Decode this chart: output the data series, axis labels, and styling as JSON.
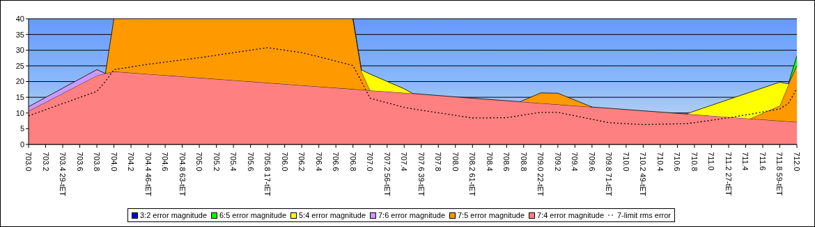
{
  "chart_data": {
    "type": "area",
    "stacked": true,
    "x": [
      703.0,
      703.8,
      703.9,
      704.0,
      704.4,
      705.0,
      705.4,
      705.8,
      706.2,
      706.4,
      706.8,
      706.9,
      707.0,
      707.4,
      707.5,
      708.2,
      708.6,
      708.76,
      709.0,
      709.2,
      709.6,
      709.8,
      710.2,
      710.7,
      710.8,
      711.2,
      711.45,
      711.8,
      711.9,
      712.0
    ],
    "series": [
      {
        "name": "7:4 error magnitude",
        "color": "#ff8080",
        "values": [
          10.6,
          21.9,
          22.6,
          23.2,
          22.4,
          21.2,
          20.4,
          19.6,
          18.8,
          18.4,
          17.6,
          17.4,
          17.2,
          16.4,
          16.2,
          14.7,
          13.9,
          13.6,
          13.1,
          12.7,
          11.9,
          11.5,
          10.7,
          9.7,
          9.5,
          8.7,
          8.2,
          7.5,
          7.3,
          7.1
        ]
      },
      {
        "name": "7:5 error magnitude",
        "color": "#ff9900",
        "values": [
          null,
          null,
          0,
          16.8,
          17.6,
          18.8,
          19.6,
          20.4,
          21.2,
          21.6,
          22.4,
          5.8,
          0,
          null,
          null,
          null,
          null,
          0,
          3.3,
          3.6,
          0,
          null,
          null,
          null,
          null,
          null,
          0,
          4.8,
          11.6,
          18.1
        ]
      },
      {
        "name": "7:6 error magnitude",
        "color": "#cc99ff",
        "values": [
          1.4,
          1.9,
          0,
          null,
          null,
          null,
          null,
          null,
          null,
          null,
          null,
          null,
          null,
          null,
          null,
          null,
          null,
          null,
          null,
          null,
          null,
          null,
          null,
          null,
          null,
          null,
          null,
          null,
          null,
          null
        ]
      },
      {
        "name": "5:4 error magnitude",
        "color": "#ffff00",
        "values": [
          null,
          null,
          null,
          null,
          null,
          null,
          null,
          null,
          null,
          null,
          0,
          0.5,
          5.2,
          1.3,
          0,
          null,
          null,
          null,
          null,
          null,
          null,
          null,
          null,
          0,
          1.1,
          5.6,
          8.4,
          7.5,
          0.4,
          0
        ]
      },
      {
        "name": "6:5 error magnitude",
        "color": "#00ff00",
        "values": [
          null,
          null,
          null,
          null,
          null,
          null,
          null,
          null,
          null,
          null,
          null,
          null,
          null,
          null,
          null,
          null,
          null,
          null,
          null,
          null,
          null,
          null,
          null,
          null,
          null,
          null,
          null,
          null,
          0,
          3.0
        ]
      },
      {
        "name": "3:2 error magnitude",
        "color": "#0000ff",
        "values": [
          null,
          null,
          null,
          null,
          null,
          null,
          null,
          null,
          null,
          null,
          null,
          null,
          null,
          null,
          null,
          null,
          null,
          null,
          null,
          null,
          null,
          null,
          null,
          null,
          null,
          null,
          null,
          null,
          null,
          null
        ]
      },
      {
        "name": "7-limit rms error",
        "type": "line",
        "color": "#000000",
        "line_style": "dotted",
        "marker": "none",
        "values": [
          9.1,
          16.9,
          20,
          23.8,
          25.5,
          27.6,
          29.2,
          30.8,
          29.2,
          27.9,
          25.1,
          20,
          14.7,
          11.8,
          11.3,
          8.4,
          8.5,
          9.2,
          10.2,
          10.2,
          8.0,
          6.9,
          6.3,
          6.6,
          6.9,
          8.5,
          9.6,
          11.3,
          13,
          17.8
        ]
      }
    ],
    "xlim": [
      703,
      712
    ],
    "xticks": [
      {
        "value": 703.0,
        "label": "703.0"
      },
      703.2,
      {
        "value": 703.4,
        "label": "703.4 29-tET"
      },
      703.6,
      703.8,
      {
        "value": 704.0,
        "label": "704.0"
      },
      704.2,
      {
        "value": 704.4,
        "label": "704.4 46-tET"
      },
      704.6,
      {
        "value": 704.8,
        "label": "704.8 63-tET"
      },
      {
        "value": 705.0,
        "label": "705.0"
      },
      705.2,
      705.4,
      705.6,
      {
        "value": 705.8,
        "label": "705.8 17-tET"
      },
      {
        "value": 706.0,
        "label": "706.0"
      },
      706.2,
      706.4,
      706.6,
      706.8,
      {
        "value": 707.0,
        "label": "707.0"
      },
      {
        "value": 707.2,
        "label": "707.2 56-tET"
      },
      707.4,
      {
        "value": 707.6,
        "label": "707.6 39-tET"
      },
      707.8,
      {
        "value": 708.0,
        "label": "708.0"
      },
      {
        "value": 708.2,
        "label": "708.2 61-tET"
      },
      708.4,
      708.6,
      708.8,
      {
        "value": 709.0,
        "label": "709.0 22-tET"
      },
      709.2,
      709.4,
      709.6,
      {
        "value": 709.8,
        "label": "709.8 71-tET"
      },
      {
        "value": 710.0,
        "label": "710.0"
      },
      {
        "value": 710.2,
        "label": "710.2 49-tET"
      },
      710.4,
      710.6,
      710.8,
      {
        "value": 711.0,
        "label": "711.0"
      },
      {
        "value": 711.2,
        "label": "711.2 27-tET"
      },
      711.4,
      711.6,
      {
        "value": 711.8,
        "label": "711.8 59-tET"
      },
      {
        "value": 712.0,
        "label": "712.0"
      }
    ],
    "ylim": [
      0,
      40
    ],
    "yticks": [
      0,
      5,
      10,
      15,
      20,
      25,
      30,
      35,
      40
    ],
    "grid": "y",
    "legend": "bottom"
  }
}
